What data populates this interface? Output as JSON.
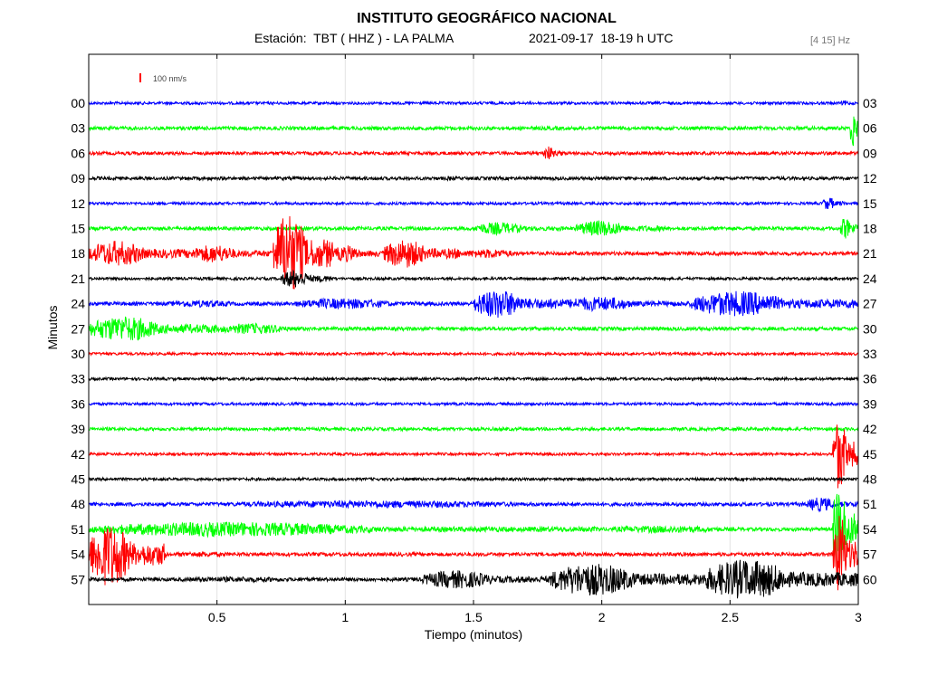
{
  "header": {
    "title": "INSTITUTO GEOGRÁFICO NACIONAL",
    "station": "Estación:  TBT ( HHZ ) - LA PALMA",
    "datetime": "2021-09-17  18-19 h UTC",
    "freq_band": "[4 15] Hz"
  },
  "chart_data": {
    "type": "line",
    "title": "INSTITUTO GEOGRÁFICO NACIONAL",
    "xlabel": "Tiempo (minutos)",
    "ylabel": "Minutos",
    "xlim": [
      0,
      3
    ],
    "x_ticks": [
      "0.5",
      "1",
      "1.5",
      "2",
      "2.5",
      "3"
    ],
    "x_tick_values": [
      0.5,
      1,
      1.5,
      2,
      2.5,
      3
    ],
    "left_labels": [
      "00",
      "03",
      "06",
      "09",
      "12",
      "15",
      "18",
      "21",
      "24",
      "27",
      "30",
      "33",
      "36",
      "39",
      "42",
      "45",
      "48",
      "51",
      "54",
      "57"
    ],
    "right_labels": [
      "03",
      "06",
      "09",
      "12",
      "15",
      "18",
      "21",
      "24",
      "27",
      "30",
      "33",
      "36",
      "39",
      "42",
      "45",
      "48",
      "51",
      "54",
      "57",
      "60"
    ],
    "scale_label": "100 nm/s",
    "colors": {
      "blue": "#0000ff",
      "green": "#00ff00",
      "red": "#ff0000",
      "black": "#000000"
    },
    "trace_colors": [
      "blue",
      "green",
      "red",
      "black",
      "blue",
      "green",
      "red",
      "black",
      "blue",
      "green",
      "red",
      "black",
      "blue",
      "green",
      "red",
      "black",
      "blue",
      "green",
      "red",
      "black"
    ],
    "traces": [
      {
        "base": 1.5,
        "events": [
          [
            2.93,
            3.0,
            3
          ]
        ]
      },
      {
        "base": 2,
        "events": [
          [
            2.97,
            3.0,
            30
          ]
        ]
      },
      {
        "base": 1.8,
        "events": [
          [
            1.77,
            1.85,
            8
          ]
        ]
      },
      {
        "base": 1.8,
        "events": [
          [
            1.38,
            1.5,
            2.5
          ]
        ]
      },
      {
        "base": 1.5,
        "events": [
          [
            2.86,
            2.95,
            7
          ]
        ]
      },
      {
        "base": 2,
        "events": [
          [
            1.5,
            1.85,
            7
          ],
          [
            1.9,
            2.25,
            9
          ],
          [
            2.93,
            3.0,
            12
          ]
        ]
      },
      {
        "base": 2,
        "events": [
          [
            0.0,
            0.4,
            14
          ],
          [
            0.4,
            0.72,
            10
          ],
          [
            0.72,
            0.95,
            45
          ],
          [
            0.95,
            1.15,
            9
          ],
          [
            1.15,
            1.45,
            16
          ],
          [
            1.45,
            1.85,
            5
          ]
        ]
      },
      {
        "base": 1.5,
        "events": [
          [
            0.75,
            0.95,
            10
          ]
        ]
      },
      {
        "base": 2,
        "events": [
          [
            0.3,
            0.8,
            4
          ],
          [
            0.8,
            1.5,
            6
          ],
          [
            1.5,
            1.85,
            16
          ],
          [
            1.85,
            2.35,
            8
          ],
          [
            2.35,
            3.0,
            14
          ]
        ]
      },
      {
        "base": 2,
        "events": [
          [
            0.0,
            0.5,
            14
          ],
          [
            0.5,
            1.0,
            6
          ],
          [
            1.0,
            2.8,
            2
          ]
        ]
      },
      {
        "base": 1.5,
        "events": []
      },
      {
        "base": 1.5,
        "events": []
      },
      {
        "base": 1.5,
        "events": []
      },
      {
        "base": 1.8,
        "events": []
      },
      {
        "base": 1.5,
        "events": [
          [
            2.9,
            3.0,
            40
          ]
        ]
      },
      {
        "base": 1.5,
        "events": []
      },
      {
        "base": 2,
        "events": [
          [
            0.5,
            2.8,
            4
          ],
          [
            2.8,
            3.0,
            8
          ]
        ]
      },
      {
        "base": 2,
        "events": [
          [
            0.0,
            2.0,
            8
          ],
          [
            2.0,
            2.9,
            4
          ],
          [
            2.9,
            3.0,
            50
          ]
        ]
      },
      {
        "base": 2,
        "events": [
          [
            0.0,
            0.3,
            35
          ],
          [
            0.3,
            0.8,
            3
          ],
          [
            2.9,
            3.0,
            45
          ]
        ]
      },
      {
        "base": 2,
        "events": [
          [
            0.3,
            1.3,
            3
          ],
          [
            1.3,
            1.8,
            10
          ],
          [
            1.8,
            2.4,
            18
          ],
          [
            2.4,
            3.0,
            22
          ]
        ]
      }
    ]
  }
}
